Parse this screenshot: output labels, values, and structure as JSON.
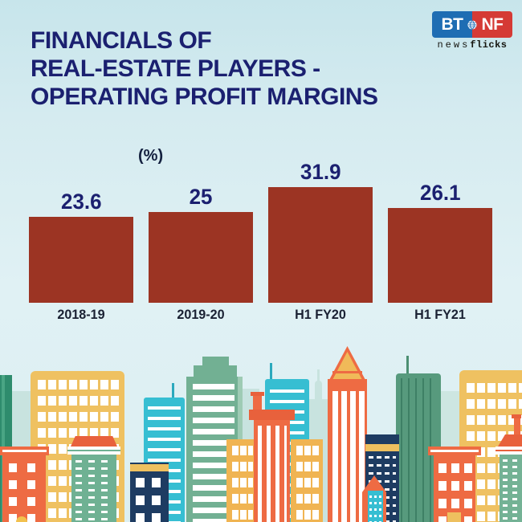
{
  "logo": {
    "bt": "BT",
    "nf": "NF",
    "tagline_light": "news",
    "tagline_bold": "flicks",
    "blue": "#1e6db3",
    "red": "#d53a35"
  },
  "title": {
    "line1": "FINANCIALS OF",
    "line2": "REAL-ESTATE PLAYERS -",
    "line3": "OPERATING PROFIT MARGINS",
    "color": "#1b2070"
  },
  "chart_data": {
    "type": "bar",
    "title": "Financials of real-estate players - operating profit margins",
    "unit_label": "(%)",
    "categories": [
      "2018-19",
      "2019-20",
      "H1 FY20",
      "H1 FY21"
    ],
    "values": [
      23.6,
      25,
      31.9,
      26.1
    ],
    "ylim": [
      0,
      40
    ],
    "bar_color": "#9c3423",
    "value_label_color": "#1b2070",
    "category_label_color": "#1a2133",
    "grid": false,
    "legend": false
  },
  "background": {
    "sky_top": "#c7e5eb",
    "sky_bottom": "#dceff2"
  }
}
